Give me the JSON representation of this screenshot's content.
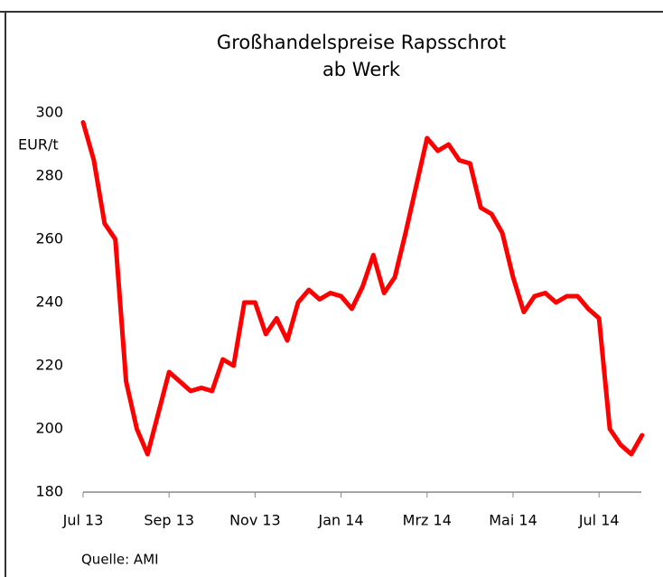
{
  "chart_data": {
    "type": "line",
    "title": [
      "Großhandelspreise Rapsschrot",
      "ab Werk"
    ],
    "y_label": "EUR/t",
    "source": "Quelle: AMI",
    "categories": [
      "Jul 13",
      null,
      null,
      null,
      null,
      null,
      null,
      null,
      "Sep 13",
      null,
      null,
      null,
      null,
      null,
      null,
      null,
      "Nov 13",
      null,
      null,
      null,
      null,
      null,
      null,
      null,
      "Jan 14",
      null,
      null,
      null,
      null,
      null,
      null,
      null,
      "Mrz 14",
      null,
      null,
      null,
      null,
      null,
      null,
      null,
      "Mai 14",
      null,
      null,
      null,
      null,
      null,
      null,
      null,
      "Jul 14",
      null,
      null,
      null,
      null
    ],
    "series": [
      {
        "name": "Rapsschrot",
        "color": "#ff0000",
        "values": [
          297,
          285,
          265,
          260,
          215,
          200,
          192,
          205,
          218,
          215,
          212,
          213,
          212,
          222,
          220,
          240,
          240,
          230,
          235,
          228,
          240,
          244,
          241,
          243,
          242,
          238,
          245,
          255,
          243,
          248,
          262,
          277,
          292,
          288,
          290,
          285,
          284,
          270,
          268,
          262,
          248,
          237,
          242,
          243,
          240,
          242,
          242,
          238,
          235,
          200,
          195,
          192,
          198
        ]
      }
    ],
    "ylim": [
      180,
      300
    ],
    "yticks": [
      180,
      200,
      220,
      240,
      260,
      280,
      300
    ],
    "grid": false
  }
}
